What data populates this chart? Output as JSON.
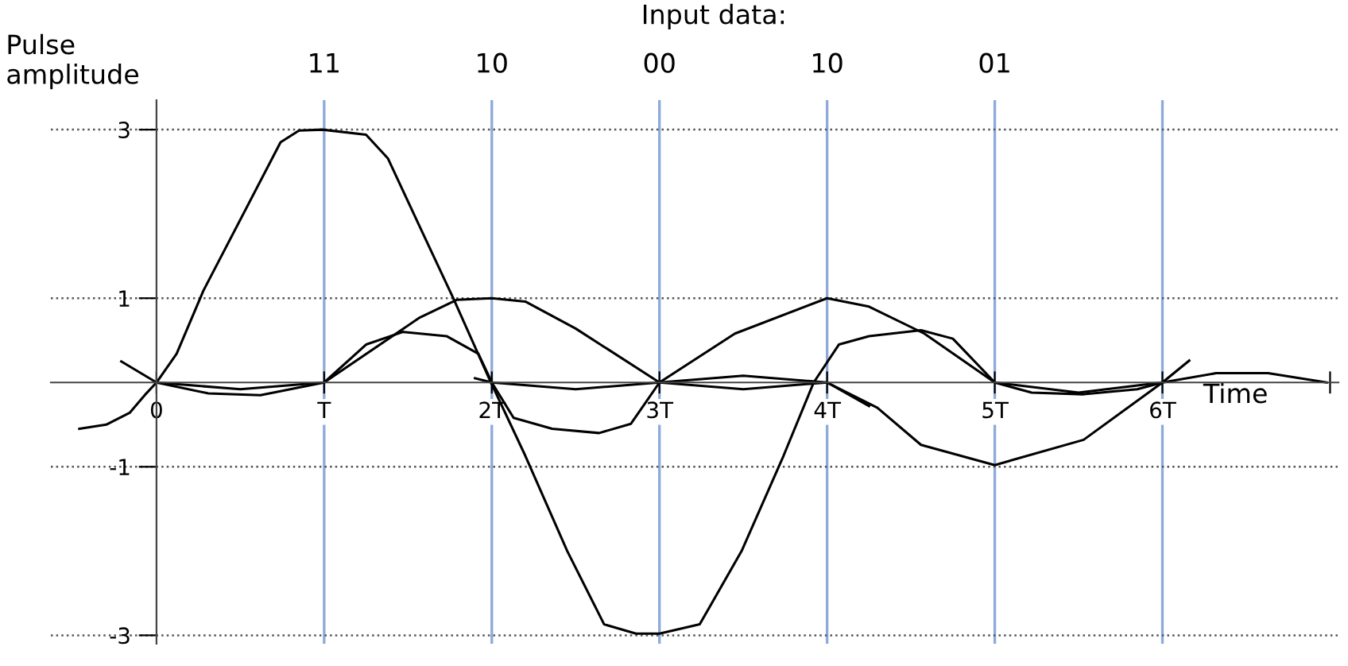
{
  "chart_data": {
    "type": "line",
    "ylabel": "Pulse\namplitude",
    "xlabel": "Time",
    "annotations": [
      "Input data:",
      "11",
      "10",
      "00",
      "10",
      "01"
    ],
    "xlim": [
      -0.63,
      7.05
    ],
    "ylim": [
      -3.1,
      3.35
    ],
    "xticks": [
      {
        "value": 0,
        "label": "0"
      },
      {
        "value": 1,
        "label": "T"
      },
      {
        "value": 2,
        "label": "2T"
      },
      {
        "value": 3,
        "label": "3T"
      },
      {
        "value": 4,
        "label": "4T"
      },
      {
        "value": 5,
        "label": "5T"
      },
      {
        "value": 6,
        "label": "6T"
      },
      {
        "value": 7,
        "label": null
      }
    ],
    "yticks": [
      -3,
      -1,
      1,
      3
    ],
    "grid": "y",
    "marker": "none",
    "line_style": "solid",
    "ref_lines": [
      {
        "axis": "x",
        "value": 1,
        "color": "#8eaadb"
      },
      {
        "axis": "x",
        "value": 2,
        "color": "#8eaadb"
      },
      {
        "axis": "x",
        "value": 3,
        "color": "#8eaadb"
      },
      {
        "axis": "x",
        "value": 4,
        "color": "#8eaadb"
      },
      {
        "axis": "x",
        "value": 5,
        "color": "#8eaadb"
      },
      {
        "axis": "x",
        "value": 6,
        "color": "#8eaadb"
      }
    ],
    "series": [
      {
        "color": "#000000",
        "x": [
          -0.46,
          -0.3,
          -0.16,
          -0.07,
          0,
          0.12,
          0.28,
          0.74,
          0.85,
          0.99,
          1.25,
          1.38,
          1.57,
          1.77,
          1.99,
          2.2,
          2.45,
          2.67,
          2.86,
          3.0,
          3.24,
          3.49,
          3.74,
          3.92,
          4.07,
          4.25,
          4.56,
          4.75,
          5.0,
          5.22,
          5.53,
          5.85,
          6.0,
          6.32,
          6.63,
          6.98
        ],
        "values": [
          -0.55,
          -0.5,
          -0.36,
          -0.15,
          0,
          0.34,
          1.09,
          2.85,
          2.99,
          3.0,
          2.94,
          2.66,
          1.85,
          1.0,
          0.02,
          -0.87,
          -2.0,
          -2.87,
          -2.98,
          -2.98,
          -2.87,
          -2.0,
          -0.87,
          0,
          0.45,
          0.55,
          0.62,
          0.52,
          0,
          -0.12,
          -0.14,
          -0.08,
          0,
          0.11,
          0.11,
          0
        ]
      },
      {
        "color": "#000000",
        "x": [
          -0.21,
          0,
          0.31,
          0.62,
          1.0,
          1.25,
          1.47,
          1.73,
          1.92,
          2.0,
          2.13,
          2.36,
          2.64,
          2.83,
          3.0,
          3.5,
          4.0,
          4.3,
          4.56,
          5.0,
          5.53,
          6.0,
          6.16
        ],
        "values": [
          0.25,
          0,
          -0.13,
          -0.15,
          0,
          0.45,
          0.6,
          0.55,
          0.34,
          0,
          -0.42,
          -0.55,
          -0.6,
          -0.49,
          0,
          -0.08,
          0,
          -0.3,
          -0.74,
          -0.98,
          -0.68,
          0,
          0.26
        ]
      },
      {
        "color": "#000000",
        "x": [
          0,
          0.5,
          1.0,
          1.57,
          1.79,
          2.0,
          2.2,
          2.5,
          3.0,
          3.45,
          4.0,
          4.25,
          4.58,
          5.0,
          5.5,
          6.0
        ],
        "values": [
          0,
          -0.08,
          0,
          0.77,
          0.98,
          1.0,
          0.96,
          0.64,
          0,
          0.58,
          1.0,
          0.9,
          0.58,
          0,
          -0.12,
          0
        ]
      },
      {
        "color": "#000000",
        "x": [
          1.9,
          2.0,
          2.5,
          3.0,
          3.5,
          4.0,
          4.25
        ],
        "values": [
          0.05,
          0,
          -0.08,
          0,
          0.08,
          0,
          -0.28
        ]
      }
    ]
  }
}
